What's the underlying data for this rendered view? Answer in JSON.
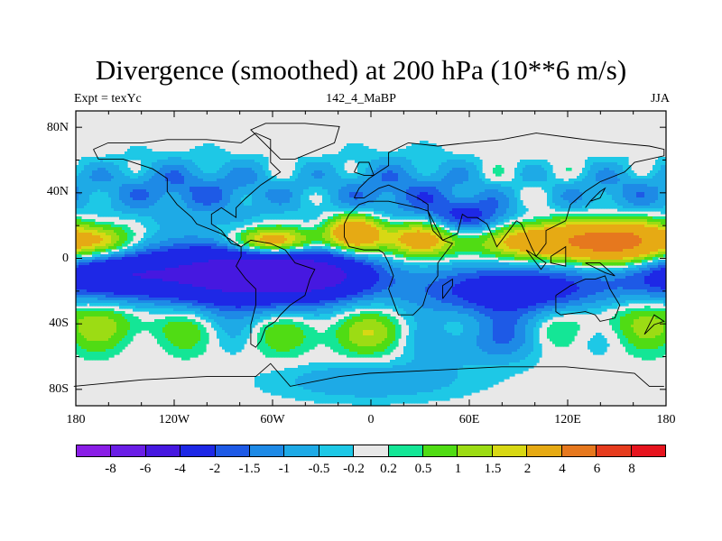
{
  "header": {
    "title": "Divergence (smoothed) at 200 hPa (10**6 m/s)",
    "left": "Expt = texYc",
    "center": "142_4_MaBP",
    "right": "JJA"
  },
  "axes": {
    "lat_labels": [
      "80N",
      "40N",
      "0",
      "40S",
      "80S"
    ],
    "lon_labels": [
      "180",
      "120W",
      "60W",
      "0",
      "60E",
      "120E",
      "180"
    ]
  },
  "colorbar": {
    "colors": [
      "#8a1ee6",
      "#6a1ee6",
      "#4618e0",
      "#1e28e6",
      "#1e5ae6",
      "#1e8ae6",
      "#1eaae6",
      "#1ec8e6",
      "#e8e8e8",
      "#14e696",
      "#50dc14",
      "#9cdc14",
      "#d8d814",
      "#e6aa14",
      "#e6781e",
      "#e63c1e",
      "#e6141e"
    ],
    "labels": [
      "-8",
      "-6",
      "-4",
      "-2",
      "-1.5",
      "-1",
      "-0.5",
      "-0.2",
      "0.2",
      "0.5",
      "1",
      "1.5",
      "2",
      "4",
      "6",
      "8"
    ]
  },
  "chart_data": {
    "type": "heatmap",
    "title": "Divergence (smoothed) at 200 hPa (10**6 m/s)",
    "subtitle": "142_4_MaBP",
    "xlabel": "",
    "ylabel": "",
    "xlim": [
      -180,
      180
    ],
    "ylim": [
      -90,
      90
    ],
    "contour_levels": [
      -8,
      -6,
      -4,
      -2,
      -1.5,
      -1,
      -0.5,
      -0.2,
      0.2,
      0.5,
      1,
      1.5,
      2,
      4,
      6,
      8
    ],
    "features": [
      {
        "lon": -160,
        "lat": -10,
        "value": -3,
        "sx": 30,
        "sy": 10
      },
      {
        "lon": -80,
        "lat": -10,
        "value": -5,
        "sx": 40,
        "sy": 14
      },
      {
        "lon": -30,
        "lat": -10,
        "value": -3,
        "sx": 25,
        "sy": 10
      },
      {
        "lon": 90,
        "lat": -20,
        "value": -3,
        "sx": 45,
        "sy": 12
      },
      {
        "lon": 60,
        "lat": -50,
        "value": -1.5,
        "sx": 30,
        "sy": 10
      },
      {
        "lon": -110,
        "lat": 42,
        "value": -1.5,
        "sx": 40,
        "sy": 12
      },
      {
        "lon": 20,
        "lat": 40,
        "value": -1.5,
        "sx": 35,
        "sy": 14
      },
      {
        "lon": 60,
        "lat": 25,
        "value": -2,
        "sx": 18,
        "sy": 8
      },
      {
        "lon": 150,
        "lat": 40,
        "value": -1,
        "sx": 30,
        "sy": 12
      },
      {
        "lon": 0,
        "lat": -75,
        "value": -1,
        "sx": 40,
        "sy": 8
      },
      {
        "lon": -60,
        "lat": 10,
        "value": 4,
        "sx": 18,
        "sy": 6
      },
      {
        "lon": -10,
        "lat": 15,
        "value": 4,
        "sx": 12,
        "sy": 8
      },
      {
        "lon": 30,
        "lat": 12,
        "value": 3,
        "sx": 15,
        "sy": 8
      },
      {
        "lon": 100,
        "lat": 10,
        "value": 3,
        "sx": 25,
        "sy": 8
      },
      {
        "lon": 150,
        "lat": 10,
        "value": 5,
        "sx": 22,
        "sy": 9
      },
      {
        "lon": -165,
        "lat": 10,
        "value": 2,
        "sx": 15,
        "sy": 7
      },
      {
        "lon": 0,
        "lat": -45,
        "value": 1.2,
        "sx": 40,
        "sy": 10
      },
      {
        "lon": -150,
        "lat": -40,
        "value": 1,
        "sx": 30,
        "sy": 10
      },
      {
        "lon": 140,
        "lat": -35,
        "value": 1,
        "sx": 30,
        "sy": 10
      }
    ]
  }
}
